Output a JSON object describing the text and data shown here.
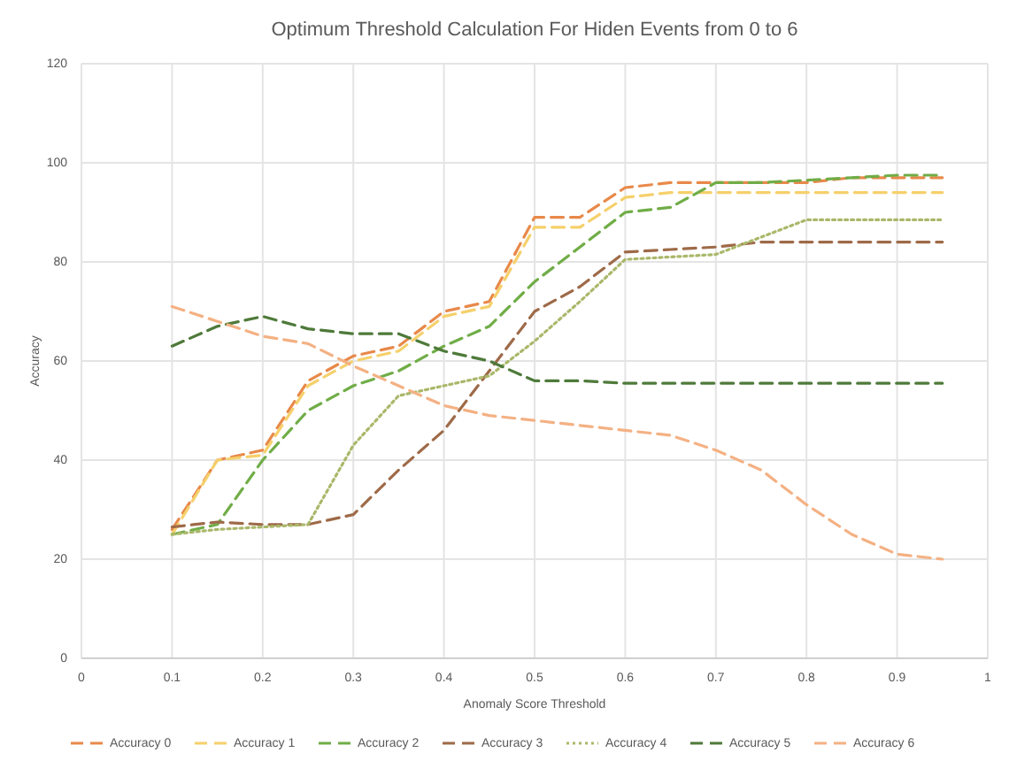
{
  "chart_data": {
    "type": "line",
    "title": "Optimum Threshold Calculation  For Hiden Events  from 0 to 6",
    "xlabel": "Anomaly Score Threshold",
    "ylabel": "Accuracy",
    "x": [
      0.1,
      0.15,
      0.2,
      0.25,
      0.3,
      0.35,
      0.4,
      0.45,
      0.5,
      0.55,
      0.6,
      0.65,
      0.7,
      0.75,
      0.8,
      0.85,
      0.9,
      0.95
    ],
    "series": [
      {
        "name": "Accuracy 0",
        "color": "#e8894a",
        "line_style": "dashed",
        "values": [
          26,
          40,
          42,
          56,
          61,
          63,
          70,
          72,
          89,
          89,
          95,
          96,
          96,
          96,
          96,
          97,
          97,
          97
        ]
      },
      {
        "name": "Accuracy 1",
        "color": "#f5d06b",
        "line_style": "dashed",
        "values": [
          25,
          40,
          41,
          55,
          60,
          62,
          69,
          71,
          87,
          87,
          93,
          94,
          94,
          94,
          94,
          94,
          94,
          94
        ]
      },
      {
        "name": "Accuracy 2",
        "color": "#70ad47",
        "line_style": "dashed",
        "values": [
          25,
          27,
          40,
          50,
          55,
          58,
          63,
          67,
          76,
          83,
          90,
          91,
          96,
          96,
          96.5,
          97,
          97.5,
          97.5
        ]
      },
      {
        "name": "Accuracy 3",
        "color": "#9e6a48",
        "line_style": "dashed",
        "values": [
          26.5,
          27.5,
          27,
          27,
          29,
          38,
          46,
          58,
          70,
          75,
          82,
          82.5,
          83,
          84,
          84,
          84,
          84,
          84
        ]
      },
      {
        "name": "Accuracy 4",
        "color": "#a9b86a",
        "line_style": "dotted",
        "values": [
          25,
          26,
          26.5,
          27,
          43,
          53,
          55,
          57,
          64,
          72,
          80.5,
          81,
          81.5,
          85,
          88.5,
          88.5,
          88.5,
          88.5
        ]
      },
      {
        "name": "Accuracy 5",
        "color": "#4e7a3a",
        "line_style": "dashed",
        "values": [
          63,
          67,
          69,
          66.5,
          65.5,
          65.5,
          62,
          60,
          56,
          56,
          55.5,
          55.5,
          55.5,
          55.5,
          55.5,
          55.5,
          55.5,
          55.5
        ]
      },
      {
        "name": "Accuracy 6",
        "color": "#f4b183",
        "line_style": "dashed",
        "values": [
          71,
          68,
          65,
          63.5,
          59,
          55,
          51,
          49,
          48,
          47,
          46,
          45,
          42,
          38,
          31,
          25,
          21,
          20
        ]
      }
    ],
    "xlim": [
      0,
      1
    ],
    "xticks": [
      0,
      0.1,
      0.2,
      0.3,
      0.4,
      0.5,
      0.6,
      0.7,
      0.8,
      0.9,
      1
    ],
    "ylim": [
      0,
      120
    ],
    "yticks": [
      0,
      20,
      40,
      60,
      80,
      100,
      120
    ],
    "grid": true,
    "legend": "bottom",
    "marker": "none"
  }
}
